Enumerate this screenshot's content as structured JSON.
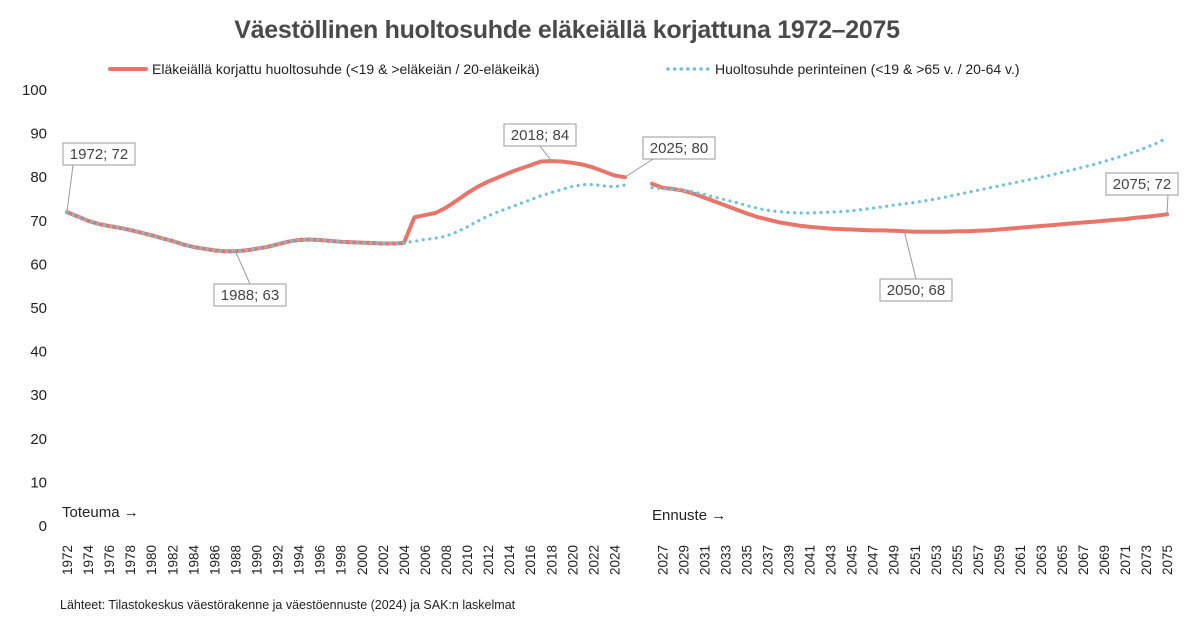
{
  "chart_data": {
    "type": "line",
    "title": "Väestöllinen huoltosuhde eläkeiällä korjattuna 1972–2075",
    "ylim": [
      0,
      100
    ],
    "yticks": [
      0,
      10,
      20,
      30,
      40,
      50,
      60,
      70,
      80,
      90,
      100
    ],
    "xlabels_actual": [
      "1972",
      "1974",
      "1976",
      "1978",
      "1980",
      "1982",
      "1984",
      "1986",
      "1988",
      "1990",
      "1992",
      "1994",
      "1996",
      "1998",
      "2000",
      "2002",
      "2004",
      "2006",
      "2008",
      "2010",
      "2012",
      "2014",
      "2016",
      "2018",
      "2020",
      "2022",
      "2024"
    ],
    "xlabels_forecast": [
      "2027",
      "2029",
      "2031",
      "2033",
      "2035",
      "2037",
      "2039",
      "2041",
      "2043",
      "2045",
      "2047",
      "2049",
      "2051",
      "2053",
      "2055",
      "2057",
      "2059",
      "2061",
      "2063",
      "2065",
      "2067",
      "2069",
      "2071",
      "2073",
      "2075"
    ],
    "legend_position": "top",
    "series": [
      {
        "name": "Eläkeiällä korjattu huoltosuhde (<19 & >eläkeiän / 20-eläkeikä)",
        "color": "#e8756a",
        "style": "solid",
        "actual": [
          [
            1972,
            72
          ],
          [
            1973,
            71
          ],
          [
            1974,
            70
          ],
          [
            1975,
            69.3
          ],
          [
            1976,
            68.8
          ],
          [
            1977,
            68.4
          ],
          [
            1978,
            67.9
          ],
          [
            1979,
            67.3
          ],
          [
            1980,
            66.7
          ],
          [
            1981,
            66
          ],
          [
            1982,
            65.4
          ],
          [
            1983,
            64.6
          ],
          [
            1984,
            64
          ],
          [
            1985,
            63.6
          ],
          [
            1986,
            63.2
          ],
          [
            1987,
            63
          ],
          [
            1988,
            63
          ],
          [
            1989,
            63.2
          ],
          [
            1990,
            63.6
          ],
          [
            1991,
            64
          ],
          [
            1992,
            64.6
          ],
          [
            1993,
            65.2
          ],
          [
            1994,
            65.6
          ],
          [
            1995,
            65.7
          ],
          [
            1996,
            65.6
          ],
          [
            1997,
            65.4
          ],
          [
            1998,
            65.2
          ],
          [
            1999,
            65.1
          ],
          [
            2000,
            65
          ],
          [
            2001,
            64.9
          ],
          [
            2002,
            64.8
          ],
          [
            2003,
            64.8
          ],
          [
            2004,
            64.9
          ],
          [
            2005,
            70.8
          ],
          [
            2006,
            71.3
          ],
          [
            2007,
            71.8
          ],
          [
            2008,
            73
          ],
          [
            2009,
            74.6
          ],
          [
            2010,
            76.3
          ],
          [
            2011,
            77.8
          ],
          [
            2012,
            79
          ],
          [
            2013,
            80
          ],
          [
            2014,
            81
          ],
          [
            2015,
            81.9
          ],
          [
            2016,
            82.7
          ],
          [
            2017,
            83.6
          ],
          [
            2018,
            83.7
          ],
          [
            2019,
            83.6
          ],
          [
            2020,
            83.3
          ],
          [
            2021,
            82.9
          ],
          [
            2022,
            82.2
          ],
          [
            2023,
            81.3
          ],
          [
            2024,
            80.4
          ],
          [
            2025,
            80
          ]
        ],
        "forecast": [
          [
            2026,
            78.5
          ],
          [
            2027,
            77.6
          ],
          [
            2028,
            77.3
          ],
          [
            2029,
            76.9
          ],
          [
            2030,
            76.2
          ],
          [
            2031,
            75.3
          ],
          [
            2032,
            74.4
          ],
          [
            2033,
            73.5
          ],
          [
            2034,
            72.6
          ],
          [
            2035,
            71.7
          ],
          [
            2036,
            70.9
          ],
          [
            2037,
            70.3
          ],
          [
            2038,
            69.7
          ],
          [
            2039,
            69.3
          ],
          [
            2040,
            68.9
          ],
          [
            2041,
            68.6
          ],
          [
            2042,
            68.4
          ],
          [
            2043,
            68.2
          ],
          [
            2044,
            68.1
          ],
          [
            2045,
            68
          ],
          [
            2046,
            67.9
          ],
          [
            2047,
            67.8
          ],
          [
            2048,
            67.8
          ],
          [
            2049,
            67.7
          ],
          [
            2050,
            67.6
          ],
          [
            2051,
            67.5
          ],
          [
            2052,
            67.5
          ],
          [
            2053,
            67.5
          ],
          [
            2054,
            67.5
          ],
          [
            2055,
            67.6
          ],
          [
            2056,
            67.6
          ],
          [
            2057,
            67.7
          ],
          [
            2058,
            67.8
          ],
          [
            2059,
            68
          ],
          [
            2060,
            68.2
          ],
          [
            2061,
            68.4
          ],
          [
            2062,
            68.6
          ],
          [
            2063,
            68.8
          ],
          [
            2064,
            69
          ],
          [
            2065,
            69.2
          ],
          [
            2066,
            69.4
          ],
          [
            2067,
            69.6
          ],
          [
            2068,
            69.8
          ],
          [
            2069,
            70
          ],
          [
            2070,
            70.2
          ],
          [
            2071,
            70.4
          ],
          [
            2072,
            70.7
          ],
          [
            2073,
            70.9
          ],
          [
            2074,
            71.2
          ],
          [
            2075,
            71.5
          ]
        ]
      },
      {
        "name": "Huoltosuhde perinteinen (<19 & >65 v. / 20-64 v.)",
        "color": "#6fc3d9",
        "style": "dotted",
        "actual": [
          [
            1972,
            72
          ],
          [
            1973,
            71
          ],
          [
            1974,
            70
          ],
          [
            1975,
            69.3
          ],
          [
            1976,
            68.8
          ],
          [
            1977,
            68.4
          ],
          [
            1978,
            67.9
          ],
          [
            1979,
            67.3
          ],
          [
            1980,
            66.7
          ],
          [
            1981,
            66
          ],
          [
            1982,
            65.4
          ],
          [
            1983,
            64.6
          ],
          [
            1984,
            64
          ],
          [
            1985,
            63.6
          ],
          [
            1986,
            63.2
          ],
          [
            1987,
            63
          ],
          [
            1988,
            63
          ],
          [
            1989,
            63.2
          ],
          [
            1990,
            63.6
          ],
          [
            1991,
            64
          ],
          [
            1992,
            64.6
          ],
          [
            1993,
            65.2
          ],
          [
            1994,
            65.6
          ],
          [
            1995,
            65.7
          ],
          [
            1996,
            65.6
          ],
          [
            1997,
            65.4
          ],
          [
            1998,
            65.2
          ],
          [
            1999,
            65.1
          ],
          [
            2000,
            65
          ],
          [
            2001,
            64.9
          ],
          [
            2002,
            64.8
          ],
          [
            2003,
            64.8
          ],
          [
            2004,
            64.9
          ],
          [
            2005,
            65.3
          ],
          [
            2006,
            65.7
          ],
          [
            2007,
            66
          ],
          [
            2008,
            66.5
          ],
          [
            2009,
            67.4
          ],
          [
            2010,
            68.6
          ],
          [
            2011,
            69.9
          ],
          [
            2012,
            71.1
          ],
          [
            2013,
            72.1
          ],
          [
            2014,
            73
          ],
          [
            2015,
            73.9
          ],
          [
            2016,
            74.8
          ],
          [
            2017,
            75.7
          ],
          [
            2018,
            76.5
          ],
          [
            2019,
            77.2
          ],
          [
            2020,
            77.9
          ],
          [
            2021,
            78.3
          ],
          [
            2022,
            78.3
          ],
          [
            2023,
            78
          ],
          [
            2024,
            77.8
          ],
          [
            2025,
            78.2
          ]
        ],
        "forecast": [
          [
            2026,
            77.6
          ],
          [
            2027,
            77.4
          ],
          [
            2028,
            77.2
          ],
          [
            2029,
            77
          ],
          [
            2030,
            76.6
          ],
          [
            2031,
            76
          ],
          [
            2032,
            75.4
          ],
          [
            2033,
            74.8
          ],
          [
            2034,
            74.2
          ],
          [
            2035,
            73.5
          ],
          [
            2036,
            72.9
          ],
          [
            2037,
            72.4
          ],
          [
            2038,
            72.1
          ],
          [
            2039,
            71.9
          ],
          [
            2040,
            71.8
          ],
          [
            2041,
            71.8
          ],
          [
            2042,
            71.9
          ],
          [
            2043,
            72
          ],
          [
            2044,
            72.1
          ],
          [
            2045,
            72.3
          ],
          [
            2046,
            72.6
          ],
          [
            2047,
            72.9
          ],
          [
            2048,
            73.2
          ],
          [
            2049,
            73.6
          ],
          [
            2050,
            73.9
          ],
          [
            2051,
            74.2
          ],
          [
            2052,
            74.6
          ],
          [
            2053,
            75
          ],
          [
            2054,
            75.5
          ],
          [
            2055,
            76
          ],
          [
            2056,
            76.5
          ],
          [
            2057,
            77
          ],
          [
            2058,
            77.5
          ],
          [
            2059,
            78
          ],
          [
            2060,
            78.5
          ],
          [
            2061,
            79
          ],
          [
            2062,
            79.5
          ],
          [
            2063,
            80
          ],
          [
            2064,
            80.5
          ],
          [
            2065,
            81.1
          ],
          [
            2066,
            81.7
          ],
          [
            2067,
            82.3
          ],
          [
            2068,
            82.9
          ],
          [
            2069,
            83.6
          ],
          [
            2070,
            84.3
          ],
          [
            2071,
            85.1
          ],
          [
            2072,
            85.9
          ],
          [
            2073,
            86.8
          ],
          [
            2074,
            87.8
          ],
          [
            2075,
            89
          ]
        ]
      }
    ],
    "annotations": [
      {
        "label": "1972; 72",
        "x": 1972,
        "y": 72
      },
      {
        "label": "1988; 63",
        "x": 1988,
        "y": 63
      },
      {
        "label": "2018; 84",
        "x": 2018,
        "y": 83.7
      },
      {
        "label": "2025; 80",
        "x": 2025,
        "y": 80
      },
      {
        "label": "2050; 68",
        "x": 2050,
        "y": 67.6
      },
      {
        "label": "2075; 72",
        "x": 2075,
        "y": 71.5
      }
    ],
    "section_labels": {
      "actual": "Toteuma →",
      "forecast": "Ennuste →"
    }
  },
  "source": "Lähteet: Tilastokeskus väestörakenne ja väestöennuste (2024) ja SAK:n laskelmat"
}
